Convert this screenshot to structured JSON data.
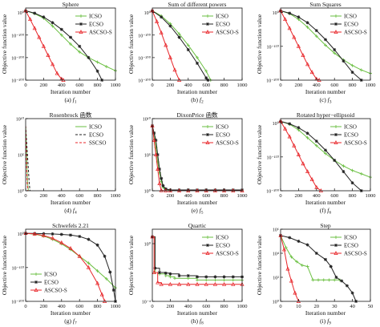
{
  "x_label": "Iteration number",
  "y_label": "Objective function value",
  "colors": {
    "ICSO": "#6abf40",
    "ECSO": "#222222",
    "ASCSO-S": "#e8262a",
    "SSCSO": "#e8262a",
    "axis": "#111111"
  },
  "chart_data": [
    {
      "type": "line",
      "title": "Sphere",
      "caption_prefix": "(a) ",
      "caption_func": "f",
      "caption_sub": "1",
      "yscale": "log",
      "ylim": [
        1e-300,
        1e+20
      ],
      "yticks": [
        {
          "v": 1.0,
          "label": "10⁰"
        },
        {
          "v": 1e-100,
          "label": "10⁻¹⁰⁰"
        },
        {
          "v": 1e-200,
          "label": "10⁻²⁰⁰"
        },
        {
          "v": 1e-300,
          "label": "10⁻³⁰⁰"
        }
      ],
      "xlim": [
        0,
        1000
      ],
      "xticks": [
        0,
        200,
        400,
        600,
        800,
        1000
      ],
      "legend": "upper-right",
      "series": [
        {
          "name": "ICSO",
          "x": [
            0,
            100,
            200,
            300,
            400,
            500,
            600,
            700,
            800,
            900,
            1000
          ],
          "y": [
            100000000.0,
            1e-05,
            1e-25,
            1e-60,
            1e-100,
            1e-140,
            1e-175,
            1e-200,
            1e-220,
            1e-240,
            1e-258
          ]
        },
        {
          "name": "ECSO",
          "x": [
            0,
            100,
            200,
            300,
            400,
            500,
            600,
            700,
            800,
            850
          ],
          "y": [
            100000000.0,
            0.001,
            1e-20,
            1e-45,
            1e-75,
            1e-110,
            1e-150,
            1e-200,
            1e-260,
            1e-300
          ]
        },
        {
          "name": "ASCSO-S",
          "x": [
            0,
            50,
            100,
            150,
            200,
            250,
            300,
            350,
            400,
            420
          ],
          "y": [
            100000000.0,
            1e-30,
            1e-70,
            1e-110,
            1e-150,
            1e-190,
            1e-230,
            1e-270,
            1e-295,
            1e-300
          ]
        }
      ]
    },
    {
      "type": "line",
      "title": "Sum of different powers",
      "caption_prefix": "(b) ",
      "caption_func": "f",
      "caption_sub": "2",
      "yscale": "log",
      "ylim": [
        1e-300,
        1e+20
      ],
      "yticks": [
        {
          "v": 1.0,
          "label": "10⁰"
        },
        {
          "v": 1e-100,
          "label": "10⁻¹⁰⁰"
        },
        {
          "v": 1e-200,
          "label": "10⁻²⁰⁰"
        },
        {
          "v": 1e-300,
          "label": "10⁻³⁰⁰"
        }
      ],
      "xlim": [
        0,
        1000
      ],
      "xticks": [
        0,
        200,
        400,
        600,
        800,
        1000
      ],
      "legend": "upper-right",
      "series": [
        {
          "name": "ICSO",
          "x": [
            0,
            100,
            200,
            300,
            400,
            500,
            600,
            650
          ],
          "y": [
            100000000.0,
            1e-15,
            1e-50,
            1e-95,
            1e-145,
            1e-200,
            1e-260,
            1e-300
          ]
        },
        {
          "name": "ECSO",
          "x": [
            0,
            100,
            200,
            300,
            400,
            500,
            600,
            620
          ],
          "y": [
            100000000.0,
            1e-20,
            1e-60,
            1e-110,
            1e-165,
            1e-225,
            1e-290,
            1e-300
          ]
        },
        {
          "name": "ASCSO-S",
          "x": [
            0,
            50,
            100,
            150,
            200,
            250,
            300
          ],
          "y": [
            100000000.0,
            1e-40,
            1e-90,
            1e-145,
            1e-200,
            1e-255,
            1e-300
          ]
        }
      ]
    },
    {
      "type": "line",
      "title": "Sum Squares",
      "caption_prefix": "(c) ",
      "caption_func": "f",
      "caption_sub": "3",
      "yscale": "log",
      "ylim": [
        1e-300,
        1e+20
      ],
      "yticks": [
        {
          "v": 1.0,
          "label": "10⁰"
        },
        {
          "v": 1e-150,
          "label": "10⁻¹⁵⁰"
        },
        {
          "v": 1e-300,
          "label": "10⁻³⁰⁰"
        }
      ],
      "xlim": [
        0,
        1000
      ],
      "xticks": [
        0,
        200,
        400,
        600,
        800,
        1000
      ],
      "legend": "upper-right",
      "series": [
        {
          "name": "ICSO",
          "x": [
            0,
            100,
            200,
            300,
            400,
            500,
            600,
            700,
            800,
            900,
            1000
          ],
          "y": [
            100000000.0,
            1e-05,
            1e-30,
            1e-65,
            1e-105,
            1e-145,
            1e-180,
            1e-210,
            1e-235,
            1e-255,
            1e-270
          ]
        },
        {
          "name": "ECSO",
          "x": [
            0,
            100,
            200,
            300,
            400,
            500,
            600,
            700,
            800,
            900
          ],
          "y": [
            100000000.0,
            0.001,
            1e-20,
            1e-45,
            1e-80,
            1e-120,
            1e-165,
            1e-215,
            1e-265,
            1e-300
          ]
        },
        {
          "name": "ASCSO-S",
          "x": [
            0,
            50,
            100,
            150,
            200,
            250,
            300,
            350,
            400,
            430
          ],
          "y": [
            100000000.0,
            1e-30,
            1e-70,
            1e-110,
            1e-150,
            1e-190,
            1e-230,
            1e-265,
            1e-295,
            1e-300
          ]
        }
      ]
    },
    {
      "type": "line",
      "title": "Rosenbrock 函数",
      "caption_prefix": "(d) ",
      "caption_func": "f",
      "caption_sub": "4",
      "yscale": "log",
      "ylim": [
        1,
        10000000000.0
      ],
      "yticks": [
        {
          "v": 10000000000.0,
          "label": "10¹⁰"
        },
        {
          "v": 100000.0,
          "label": "10⁵"
        },
        {
          "v": 1,
          "label": "10⁰"
        }
      ],
      "xlim": [
        0,
        1000
      ],
      "xticks": [
        0,
        200,
        400,
        600,
        800,
        1000
      ],
      "legend": "upper-right",
      "series": [
        {
          "name": "ICSO",
          "style": "solid",
          "x": [
            0,
            8,
            15,
            22,
            30
          ],
          "y": [
            1000000000.0,
            1000000.0,
            1000.0,
            10,
            1
          ]
        },
        {
          "name": "ECSO",
          "style": "dash",
          "x": [
            0,
            10,
            20,
            30,
            40,
            48
          ],
          "y": [
            1000000000.0,
            10000000.0,
            100000.0,
            1000.0,
            10,
            1
          ]
        },
        {
          "name": "SSCSO",
          "style": "dash",
          "x": [
            0,
            6,
            12,
            18,
            25
          ],
          "y": [
            1000000000.0,
            1000000.0,
            1000.0,
            10,
            1
          ]
        }
      ]
    },
    {
      "type": "line",
      "title": "DixonPrice 函数",
      "caption_prefix": "(e) ",
      "caption_func": "f",
      "caption_sub": "5",
      "yscale": "log",
      "ylim": [
        1,
        10000000000.0
      ],
      "yticks": [
        {
          "v": 10000000000.0,
          "label": "10¹⁰"
        },
        {
          "v": 100000.0,
          "label": "10⁵"
        },
        {
          "v": 1,
          "label": "10⁰"
        }
      ],
      "xlim": [
        0,
        1000
      ],
      "xticks": [
        0,
        200,
        400,
        600,
        800,
        1000
      ],
      "legend": "upper-right",
      "series": [
        {
          "name": "ICSO",
          "x": [
            0,
            20,
            40,
            60,
            80,
            100,
            120,
            150,
            200,
            300,
            400,
            500,
            600,
            700,
            800,
            900,
            1000
          ],
          "y": [
            1000000000.0,
            100000000.0,
            1000000.0,
            10000.0,
            300,
            20,
            3,
            1.5,
            1.2,
            1.2,
            1.2,
            1.2,
            1.2,
            1.2,
            1.2,
            1.2,
            1.2
          ]
        },
        {
          "name": "ECSO",
          "x": [
            0,
            20,
            40,
            60,
            80,
            100,
            120,
            150,
            200,
            300,
            400,
            500,
            600,
            700,
            800,
            900,
            1000
          ],
          "y": [
            1000000000.0,
            100000000.0,
            10000000.0,
            100000.0,
            1000.0,
            50,
            5,
            1.8,
            1.3,
            1.3,
            1.3,
            1.3,
            1.3,
            1.3,
            1.3,
            1.3,
            1.3
          ]
        },
        {
          "name": "ASCSO-S",
          "x": [
            0,
            20,
            40,
            60,
            80,
            100,
            150,
            200,
            300,
            400,
            500,
            600,
            700,
            800,
            900,
            1000
          ],
          "y": [
            1000000000.0,
            10000000.0,
            100000.0,
            1000.0,
            10,
            1.1,
            1,
            1,
            1,
            1,
            1,
            1,
            1,
            1,
            1,
            1
          ]
        }
      ]
    },
    {
      "type": "line",
      "title": "Rotated hyper−ellipsoid",
      "caption_prefix": "(f) ",
      "caption_func": "f",
      "caption_sub": "6",
      "yscale": "log",
      "ylim": [
        1e-300,
        1e+20
      ],
      "yticks": [
        {
          "v": 1.0,
          "label": "10⁰"
        },
        {
          "v": 1e-150,
          "label": "10⁻¹⁵⁰"
        },
        {
          "v": 1e-300,
          "label": "10⁻³⁰⁰"
        }
      ],
      "xlim": [
        0,
        1000
      ],
      "xticks": [
        0,
        200,
        400,
        600,
        800,
        1000
      ],
      "legend": "upper-right",
      "series": [
        {
          "name": "ICSO",
          "x": [
            0,
            100,
            200,
            300,
            400,
            500,
            600,
            700,
            800,
            900,
            1000
          ],
          "y": [
            100000000.0,
            1e-05,
            1e-30,
            1e-65,
            1e-100,
            1e-135,
            1e-165,
            1e-190,
            1e-210,
            1e-225,
            1e-240
          ]
        },
        {
          "name": "ECSO",
          "x": [
            0,
            100,
            200,
            300,
            400,
            500,
            600,
            700,
            800,
            900
          ],
          "y": [
            100000000.0,
            0.001,
            1e-20,
            1e-45,
            1e-80,
            1e-120,
            1e-165,
            1e-215,
            1e-265,
            1e-300
          ]
        },
        {
          "name": "ASCSO-S",
          "x": [
            0,
            50,
            100,
            150,
            200,
            250,
            300,
            350,
            400,
            450
          ],
          "y": [
            100000000.0,
            1e-25,
            1e-60,
            1e-100,
            1e-140,
            1e-180,
            1e-215,
            1e-250,
            1e-285,
            1e-300
          ]
        }
      ]
    },
    {
      "type": "line",
      "title": "Schwefels 2.21",
      "caption_prefix": "(g) ",
      "caption_func": "f",
      "caption_sub": "7",
      "yscale": "log",
      "ylim": [
        1e-300,
        1e+20
      ],
      "yticks": [
        {
          "v": 1.0,
          "label": "10⁰"
        },
        {
          "v": 1e-150,
          "label": "10⁻¹⁵⁰"
        },
        {
          "v": 1e-300,
          "label": "10⁻³⁰⁰"
        }
      ],
      "xlim": [
        0,
        1000
      ],
      "xticks": [
        0,
        200,
        400,
        600,
        800,
        1000
      ],
      "legend": "lower-left",
      "series": [
        {
          "name": "ICSO",
          "x": [
            0,
            100,
            200,
            300,
            400,
            500,
            600,
            700,
            800,
            900,
            1000
          ],
          "y": [
            100.0,
            0.01,
            1e-10,
            1e-25,
            1e-45,
            1e-70,
            1e-100,
            1e-130,
            1e-165,
            1e-200,
            1e-240
          ]
        },
        {
          "name": "ECSO",
          "x": [
            0,
            100,
            200,
            300,
            400,
            500,
            600,
            700,
            800,
            880,
            940,
            980,
            1000
          ],
          "y": [
            100.0,
            10.0,
            1.0,
            0.1,
            0.001,
            1e-06,
            1e-12,
            1e-25,
            1e-50,
            1e-100,
            1e-170,
            1e-250,
            1e-300
          ]
        },
        {
          "name": "ASCSO-S",
          "x": [
            0,
            100,
            200,
            300,
            400,
            500,
            600,
            700,
            800,
            850,
            880
          ],
          "y": [
            100.0,
            0.1,
            1e-08,
            1e-20,
            1e-40,
            1e-65,
            1e-100,
            1e-150,
            1e-220,
            1e-270,
            1e-300
          ]
        }
      ]
    },
    {
      "type": "line",
      "title": "Quartic",
      "caption_prefix": "(h) ",
      "caption_func": "f",
      "caption_sub": "8",
      "yscale": "log",
      "ylim": [
        0.0001,
        10.0
      ],
      "yticks": [
        {
          "v": 1,
          "label": "10⁰"
        },
        {
          "v": 0.0001,
          "label": "10⁻⁴"
        }
      ],
      "xlim": [
        0,
        1000
      ],
      "xticks": [
        0,
        200,
        400,
        600,
        800,
        1000
      ],
      "legend": "upper-right",
      "series": [
        {
          "name": "ICSO",
          "step": true,
          "x": [
            0,
            30,
            80,
            150,
            200,
            250,
            400,
            500,
            600,
            700,
            800,
            900,
            1000
          ],
          "y": [
            3,
            0.01,
            0.008,
            0.006,
            0.005,
            0.004,
            0.004,
            0.003,
            0.003,
            0.003,
            0.003,
            0.003,
            0.003
          ]
        },
        {
          "name": "ECSO",
          "step": true,
          "x": [
            0,
            30,
            80,
            150,
            200,
            300,
            400,
            500,
            600,
            700,
            800,
            900,
            1000
          ],
          "y": [
            3,
            0.02,
            0.01,
            0.009,
            0.008,
            0.006,
            0.006,
            0.005,
            0.005,
            0.005,
            0.005,
            0.005,
            0.005
          ]
        },
        {
          "name": "ASCSO-S",
          "step": true,
          "x": [
            0,
            20,
            60,
            100,
            200,
            300,
            400,
            500,
            600,
            700,
            800,
            900,
            1000
          ],
          "y": [
            3,
            0.01,
            0.002,
            0.0015,
            0.0015,
            0.0015,
            0.0015,
            0.0015,
            0.0015,
            0.0015,
            0.0015,
            0.0015,
            0.0015
          ]
        }
      ]
    },
    {
      "type": "line",
      "title": "Step",
      "caption_prefix": "(i) ",
      "caption_func": "f",
      "caption_sub": "9",
      "yscale": "log",
      "ylim": [
        1,
        1000000.0
      ],
      "yticks": [
        {
          "v": 1000000.0,
          "label": "10⁶"
        },
        {
          "v": 10000.0,
          "label": "10⁴"
        },
        {
          "v": 100.0,
          "label": "10²"
        },
        {
          "v": 1,
          "label": "10⁰"
        }
      ],
      "xlim": [
        0,
        50
      ],
      "xticks": [
        0,
        10,
        20,
        30,
        40,
        50
      ],
      "legend": "upper-right",
      "series": [
        {
          "name": "ICSO",
          "x": [
            0,
            3,
            6,
            9,
            12,
            15,
            18,
            21,
            24,
            27,
            30,
            33
          ],
          "y": [
            300000.0,
            30000.0,
            5000.0,
            2000.0,
            1000.0,
            800,
            60,
            60,
            60,
            60,
            60,
            60
          ]
        },
        {
          "name": "ECSO",
          "x": [
            0,
            5,
            10,
            15,
            20,
            25,
            28,
            31,
            34,
            37,
            40,
            42
          ],
          "y": [
            300000.0,
            200000.0,
            100000.0,
            50000.0,
            10000.0,
            3000.0,
            800,
            100,
            50,
            20,
            5,
            1
          ]
        },
        {
          "name": "ASCSO-S",
          "x": [
            0,
            2,
            4,
            6,
            8,
            10
          ],
          "y": [
            300000.0,
            20000.0,
            500,
            50,
            5,
            1
          ]
        }
      ]
    }
  ]
}
